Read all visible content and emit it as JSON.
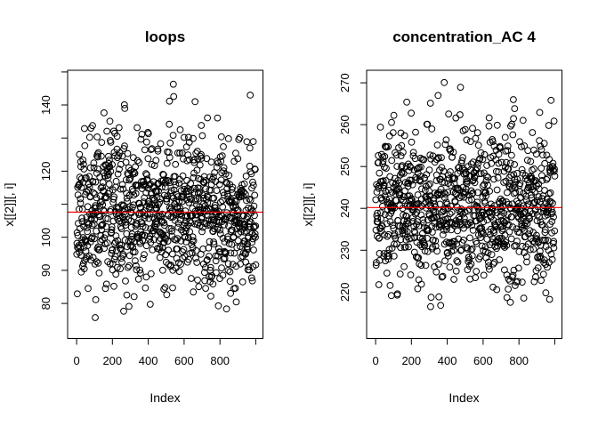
{
  "figure": {
    "background": "#ffffff",
    "panel_count": 2,
    "foreground": "#000000"
  },
  "chart_data": [
    {
      "type": "scatter",
      "title": "loops",
      "xlabel": "Index",
      "ylabel": "x[[2]][, i]",
      "grid": false,
      "legend": null,
      "n_points": 1000,
      "x_description": "observation index 1..1000",
      "xlim": [
        -50,
        1040
      ],
      "ylim": [
        69.4,
        150.5
      ],
      "x_ticks": [
        0,
        200,
        400,
        600,
        800,
        1000
      ],
      "x_tick_labels": [
        "0",
        "200",
        "400",
        "600",
        "800",
        ""
      ],
      "y_ticks": [
        80,
        90,
        100,
        110,
        120,
        130,
        140,
        150
      ],
      "y_tick_labels": [
        "80",
        "90",
        "100",
        "",
        "120",
        "",
        "140",
        ""
      ],
      "points": {
        "distribution": "normal",
        "mean": 107.6,
        "sd": 11.2,
        "min": 72.2,
        "max": 148.1,
        "seed": 11
      },
      "mean_line": {
        "value": 107.6,
        "color": "#ff0000"
      },
      "marker": {
        "shape": "open-circle",
        "color": "#000000",
        "radius_px": 3.4
      }
    },
    {
      "type": "scatter",
      "title": "concentration_AC 4",
      "xlabel": "Index",
      "ylabel": "x[[2]][, i]",
      "grid": false,
      "legend": null,
      "n_points": 1000,
      "x_description": "observation index 1..1000",
      "xlim": [
        -50,
        1040
      ],
      "ylim": [
        208.9,
        273.0
      ],
      "x_ticks": [
        0,
        200,
        400,
        600,
        800,
        1000
      ],
      "x_tick_labels": [
        "0",
        "200",
        "400",
        "600",
        "800",
        ""
      ],
      "y_ticks": [
        220,
        230,
        240,
        250,
        260,
        270
      ],
      "y_tick_labels": [
        "220",
        "230",
        "240",
        "250",
        "260",
        "270"
      ],
      "points": {
        "distribution": "normal",
        "mean": 240.2,
        "sd": 9.2,
        "min": 210.5,
        "max": 272.2,
        "seed": 97
      },
      "mean_line": {
        "value": 240.2,
        "color": "#ff0000"
      },
      "marker": {
        "shape": "open-circle",
        "color": "#000000",
        "radius_px": 3.4
      }
    }
  ]
}
